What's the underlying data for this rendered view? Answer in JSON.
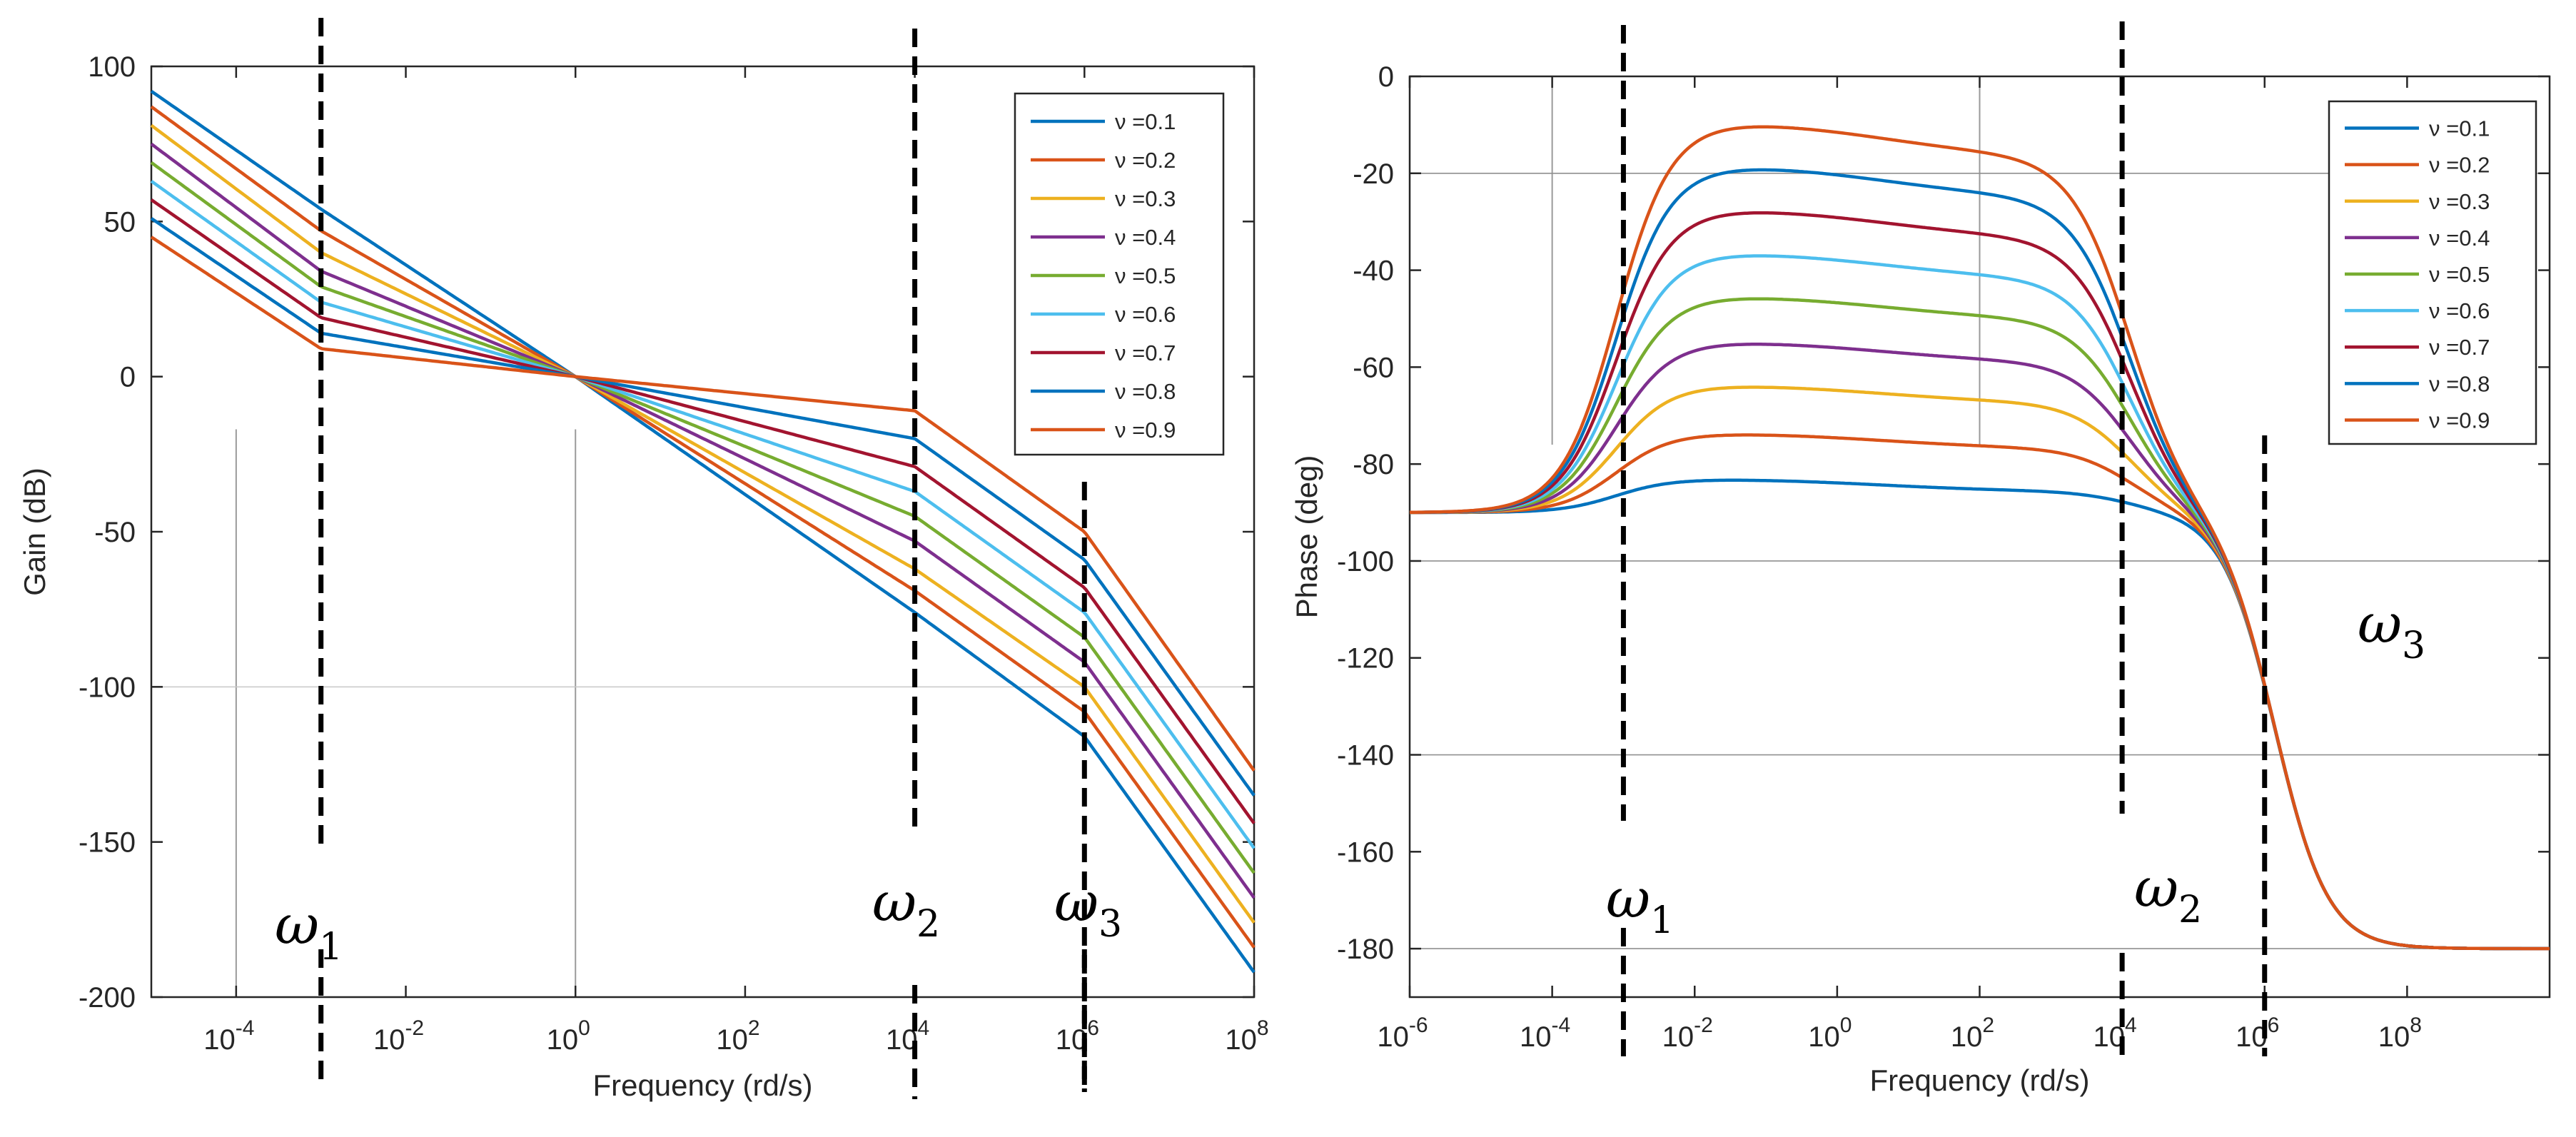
{
  "chart_data": [
    {
      "type": "line",
      "xscale": "log",
      "xlim": [
        1e-05,
        100000000
      ],
      "ylim": [
        -200,
        100
      ],
      "xlabel": "Frequency (rd/s)",
      "ylabel": "Gain (dB)",
      "x_ticks": [
        {
          "value": 0.0001,
          "base": "10",
          "exp": "-4"
        },
        {
          "value": 0.01,
          "base": "10",
          "exp": "-2"
        },
        {
          "value": 1,
          "base": "10",
          "exp": "0"
        },
        {
          "value": 100,
          "base": "10",
          "exp": "2"
        },
        {
          "value": 10000,
          "base": "10",
          "exp": "4"
        },
        {
          "value": 1000000,
          "base": "10",
          "exp": "6"
        },
        {
          "value": 100000000,
          "base": "10",
          "exp": "8"
        }
      ],
      "y_ticks": [
        "100",
        "50",
        "0",
        "-50",
        "-100",
        "-150",
        "-200"
      ],
      "legend_position": "top-right",
      "corner_frequencies": [
        0.001,
        10000,
        1000000
      ],
      "markers": [
        {
          "symbol": "ω",
          "sub": "1",
          "x": 0.001
        },
        {
          "symbol": "ω",
          "sub": "2",
          "x": 10000
        },
        {
          "symbol": "ω",
          "sub": "3",
          "x": 1000000
        }
      ],
      "series": [
        {
          "name": "ν =0.1",
          "color": "#0072BD",
          "values": [
            [
              1e-05,
              92
            ],
            [
              0.001,
              54
            ],
            [
              1,
              0
            ],
            [
              10000,
              -76
            ],
            [
              1000000,
              -116
            ],
            [
              100000000,
              -192
            ]
          ]
        },
        {
          "name": "ν =0.2",
          "color": "#D95319",
          "values": [
            [
              1e-05,
              87
            ],
            [
              0.001,
              47
            ],
            [
              1,
              0
            ],
            [
              10000,
              -69
            ],
            [
              1000000,
              -108
            ],
            [
              100000000,
              -184
            ]
          ]
        },
        {
          "name": "ν =0.3",
          "color": "#EDB120",
          "values": [
            [
              1e-05,
              81
            ],
            [
              0.001,
              40
            ],
            [
              1,
              0
            ],
            [
              10000,
              -62
            ],
            [
              1000000,
              -100
            ],
            [
              100000000,
              -176
            ]
          ]
        },
        {
          "name": "ν =0.4",
          "color": "#7E2F8E",
          "values": [
            [
              1e-05,
              75
            ],
            [
              0.001,
              34
            ],
            [
              1,
              0
            ],
            [
              10000,
              -53
            ],
            [
              1000000,
              -92
            ],
            [
              100000000,
              -168
            ]
          ]
        },
        {
          "name": "ν =0.5",
          "color": "#77AC30",
          "values": [
            [
              1e-05,
              69
            ],
            [
              0.001,
              29
            ],
            [
              1,
              0
            ],
            [
              10000,
              -45
            ],
            [
              1000000,
              -84
            ],
            [
              100000000,
              -160
            ]
          ]
        },
        {
          "name": "ν =0.6",
          "color": "#4DBEEE",
          "values": [
            [
              1e-05,
              63
            ],
            [
              0.001,
              24
            ],
            [
              1,
              0
            ],
            [
              10000,
              -37
            ],
            [
              1000000,
              -76
            ],
            [
              100000000,
              -152
            ]
          ]
        },
        {
          "name": "ν =0.7",
          "color": "#A2142F",
          "values": [
            [
              1e-05,
              57
            ],
            [
              0.001,
              19
            ],
            [
              1,
              0
            ],
            [
              10000,
              -29
            ],
            [
              1000000,
              -68
            ],
            [
              100000000,
              -144
            ]
          ]
        },
        {
          "name": "ν =0.8",
          "color": "#0072BD",
          "values": [
            [
              1e-05,
              51
            ],
            [
              0.001,
              14
            ],
            [
              1,
              0
            ],
            [
              10000,
              -20
            ],
            [
              1000000,
              -59
            ],
            [
              100000000,
              -135
            ]
          ]
        },
        {
          "name": "ν =0.9",
          "color": "#D95319",
          "values": [
            [
              1e-05,
              45
            ],
            [
              0.001,
              9
            ],
            [
              1,
              0
            ],
            [
              10000,
              -11
            ],
            [
              1000000,
              -50
            ],
            [
              100000000,
              -127
            ]
          ]
        }
      ]
    },
    {
      "type": "line",
      "xscale": "log",
      "xlim": [
        1e-06,
        10000000000
      ],
      "ylim": [
        -190,
        0
      ],
      "xlabel": "Frequency (rd/s)",
      "ylabel": "Phase (deg)",
      "x_ticks": [
        {
          "value": 1e-06,
          "base": "10",
          "exp": "-6"
        },
        {
          "value": 0.0001,
          "base": "10",
          "exp": "-4"
        },
        {
          "value": 0.01,
          "base": "10",
          "exp": "-2"
        },
        {
          "value": 1,
          "base": "10",
          "exp": "0"
        },
        {
          "value": 100,
          "base": "10",
          "exp": "2"
        },
        {
          "value": 10000,
          "base": "10",
          "exp": "4"
        },
        {
          "value": 1000000,
          "base": "10",
          "exp": "6"
        },
        {
          "value": 100000000,
          "base": "10",
          "exp": "8"
        }
      ],
      "y_ticks": [
        "0",
        "-20",
        "-40",
        "-60",
        "-80",
        "-100",
        "-120",
        "-140",
        "-160",
        "-180"
      ],
      "legend_position": "top-right",
      "corner_frequencies": [
        0.001,
        10000,
        1000000
      ],
      "markers": [
        {
          "symbol": "ω",
          "sub": "1",
          "x": 0.001
        },
        {
          "symbol": "ω",
          "sub": "2",
          "x": 10000
        },
        {
          "symbol": "ω",
          "sub": "3",
          "x": 1000000
        }
      ],
      "series": [
        {
          "name": "ν =0.1",
          "color": "#0072BD",
          "plateau": -83,
          "end_offset": -2.6
        },
        {
          "name": "ν =0.2",
          "color": "#D95319",
          "plateau": -73.5,
          "end_offset": -3.2
        },
        {
          "name": "ν =0.3",
          "color": "#EDB120",
          "plateau": -63.5,
          "end_offset": -3.8
        },
        {
          "name": "ν =0.4",
          "color": "#7E2F8E",
          "plateau": -54.5,
          "end_offset": -4.4
        },
        {
          "name": "ν =0.5",
          "color": "#77AC30",
          "plateau": -45,
          "end_offset": -5.0
        },
        {
          "name": "ν =0.6",
          "color": "#4DBEEE",
          "plateau": -36,
          "end_offset": -5.6
        },
        {
          "name": "ν =0.7",
          "color": "#A2142F",
          "plateau": -27,
          "end_offset": -6.2
        },
        {
          "name": "ν =0.8",
          "color": "#0072BD",
          "plateau": -18,
          "end_offset": -6.8
        },
        {
          "name": "ν =0.9",
          "color": "#D95319",
          "plateau": -9,
          "end_offset": -7.4
        }
      ]
    }
  ]
}
